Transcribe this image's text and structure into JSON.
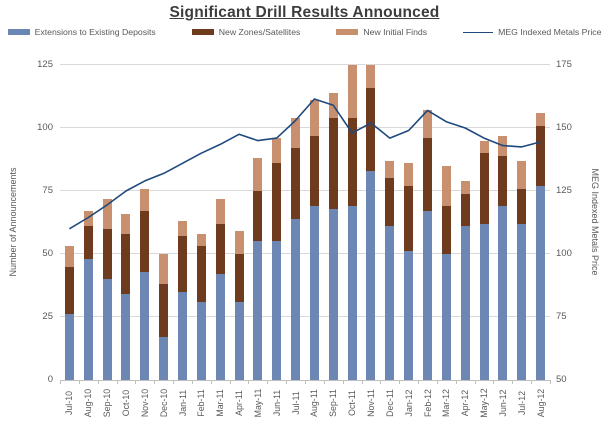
{
  "title": "Significant Drill Results Announced",
  "legend": {
    "bar_items": [
      "Extensions to Existing Deposits",
      "New Zones/Satellites",
      "New Initial Finds"
    ],
    "line_item": "MEG Indexed Metals Price"
  },
  "colors": {
    "extensions": "#6d87b4",
    "new_zones": "#6e3b1e",
    "new_finds": "#c8906f",
    "meg_line": "#1f497d",
    "gridline": "#d9d9d9",
    "axis_text": "#595959",
    "title_text": "#3d3d3d"
  },
  "chart_data": {
    "type": "combo-stacked-bar-line",
    "title": "Significant Drill Results Announced",
    "categories": [
      "Jul-10",
      "Aug-10",
      "Sep-10",
      "Oct-10",
      "Nov-10",
      "Dec-10",
      "Jan-11",
      "Feb-11",
      "Mar-11",
      "Apr-11",
      "May-11",
      "Jun-11",
      "Jul-11",
      "Aug-11",
      "Sep-11",
      "Oct-11",
      "Nov-11",
      "Dec-11",
      "Jan-12",
      "Feb-12",
      "Mar-12",
      "Apr-12",
      "May-12",
      "Jun-12",
      "Jul-12",
      "Aug-12"
    ],
    "bar_series": [
      {
        "name": "Extensions to Existing Deposits",
        "color": "#6d87b4",
        "values": [
          26,
          48,
          40,
          34,
          43,
          17,
          35,
          31,
          42,
          31,
          55,
          55,
          64,
          69,
          68,
          69,
          83,
          61,
          51,
          67,
          50,
          61,
          62,
          69,
          62,
          77
        ]
      },
      {
        "name": "New Zones/Satellites",
        "color": "#6e3b1e",
        "values": [
          19,
          13,
          20,
          24,
          24,
          21,
          22,
          22,
          20,
          19,
          20,
          31,
          28,
          28,
          36,
          35,
          33,
          19,
          26,
          29,
          19,
          13,
          28,
          20,
          14,
          24
        ]
      },
      {
        "name": "New Initial Finds",
        "color": "#c8906f",
        "values": [
          8,
          6,
          12,
          8,
          9,
          12,
          6,
          5,
          10,
          9,
          13,
          10,
          12,
          14,
          10,
          21,
          9,
          7,
          9,
          11,
          16,
          5,
          5,
          8,
          11,
          5
        ]
      }
    ],
    "line_series": {
      "name": "MEG Indexed Metals Price",
      "color": "#1f497d",
      "axis": "right",
      "values": [
        110,
        114.5,
        119.5,
        125,
        129,
        132,
        136,
        140,
        143.5,
        147.5,
        145,
        146,
        153,
        161.5,
        159,
        148,
        152,
        146,
        149,
        157,
        152.5,
        150,
        146,
        143,
        142.5,
        144.5
      ]
    },
    "left_axis": {
      "title": "Number of Announcements",
      "min": 0,
      "max": 125,
      "ticks": [
        0,
        25,
        50,
        75,
        100,
        125
      ]
    },
    "right_axis": {
      "title": "MEG Indexed Metals Price",
      "min": 50,
      "max": 175,
      "ticks": [
        50,
        75,
        100,
        125,
        150,
        175
      ]
    },
    "grid": true,
    "legend_position": "top"
  }
}
